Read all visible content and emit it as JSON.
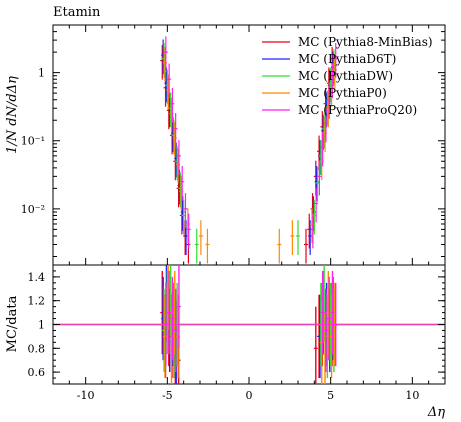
{
  "chart_data": [
    {
      "type": "line",
      "panel": "main",
      "title": "Etamin",
      "xlabel": "Δη",
      "ylabel": "1/N dN/dΔη",
      "xlim": [
        -12,
        12
      ],
      "ylim_log": [
        0.0015,
        5
      ],
      "y_log": true,
      "grid": false,
      "legend_position": "top-right",
      "x_ticks": [
        "-10",
        "-5",
        "0",
        "5",
        "10"
      ],
      "x_tick_values": [
        -10,
        -5,
        0,
        5,
        10
      ],
      "y_ticks": [
        "10⁻²",
        "10⁻¹",
        "1"
      ],
      "y_tick_values": [
        0.01,
        0.1,
        1
      ],
      "series": [
        {
          "name": "MC (Pythia8-MinBias)",
          "color": "#e8001a",
          "x": [
            -5.2,
            -5.0,
            -4.8,
            -4.6,
            -4.4,
            -4.2,
            -4.0,
            -3.8,
            -3.6,
            3.6,
            3.8,
            4.0,
            4.2,
            4.4,
            4.6,
            4.8,
            5.0,
            5.2
          ],
          "values": [
            1.5,
            0.6,
            0.28,
            0.12,
            0.05,
            0.02,
            0.008,
            0.004,
            0.003,
            0.003,
            0.005,
            0.01,
            0.03,
            0.07,
            0.16,
            0.35,
            0.7,
            1.4
          ]
        },
        {
          "name": "MC (PythiaD6T)",
          "color": "#2020ff",
          "x": [
            -5.2,
            -5.0,
            -4.8,
            -4.6,
            -4.4,
            -4.2,
            -4.0,
            -3.8,
            3.8,
            4.0,
            4.2,
            4.4,
            4.6,
            4.8,
            5.0,
            5.2
          ],
          "values": [
            1.8,
            0.7,
            0.3,
            0.13,
            0.055,
            0.022,
            0.009,
            0.004,
            0.004,
            0.009,
            0.025,
            0.06,
            0.14,
            0.3,
            0.65,
            1.2
          ]
        },
        {
          "name": "MC (PythiaDW)",
          "color": "#33dd33",
          "x": [
            -5.2,
            -5.0,
            -4.8,
            -4.6,
            -4.4,
            -4.2,
            -4.0,
            -3.2,
            3.0,
            4.0,
            4.2,
            4.4,
            4.6,
            4.8,
            5.0,
            5.2
          ],
          "values": [
            1.6,
            0.65,
            0.3,
            0.12,
            0.05,
            0.02,
            0.008,
            0.003,
            0.004,
            0.008,
            0.024,
            0.06,
            0.15,
            0.32,
            0.7,
            1.3
          ]
        },
        {
          "name": "MC (PythiaP0)",
          "color": "#ff8800",
          "x": [
            -5.2,
            -5.0,
            -4.8,
            -4.6,
            -4.4,
            -4.2,
            -3.8,
            -3.0,
            -2.6,
            1.8,
            2.6,
            3.8,
            4.4,
            4.6,
            4.8,
            5.0,
            5.2
          ],
          "values": [
            1.4,
            0.55,
            0.25,
            0.11,
            0.045,
            0.018,
            0.006,
            0.004,
            0.003,
            0.003,
            0.004,
            0.006,
            0.05,
            0.13,
            0.3,
            0.6,
            1.1
          ]
        },
        {
          "name": "MC (PythiaProQ20)",
          "color": "#ff22ee",
          "x": [
            -5.2,
            -5.0,
            -4.8,
            -4.6,
            -4.4,
            -4.2,
            -4.0,
            -3.8,
            3.8,
            4.0,
            4.2,
            4.4,
            4.6,
            4.8,
            5.0,
            5.2
          ],
          "values": [
            2.0,
            0.8,
            0.35,
            0.15,
            0.06,
            0.025,
            0.01,
            0.005,
            0.005,
            0.012,
            0.03,
            0.08,
            0.18,
            0.4,
            0.8,
            1.6
          ]
        }
      ]
    },
    {
      "type": "line",
      "panel": "ratio",
      "xlabel": "Δη",
      "ylabel": "MC/data",
      "xlim": [
        -12,
        12
      ],
      "ylim": [
        0.5,
        1.5
      ],
      "grid": false,
      "x_ticks": [
        "-10",
        "-5",
        "0",
        "5",
        "10"
      ],
      "x_tick_values": [
        -10,
        -5,
        0,
        5,
        10
      ],
      "y_ticks": [
        "0.6",
        "0.8",
        "1",
        "1.2",
        "1.4"
      ],
      "y_tick_values": [
        0.6,
        0.8,
        1.0,
        1.2,
        1.4
      ],
      "reference_line": 1.0,
      "series": [
        {
          "name": "MC (Pythia8-MinBias)",
          "color": "#e8001a",
          "x": [
            -5.2,
            -5.0,
            -4.8,
            -4.6,
            -4.4,
            -4.2,
            4.2,
            4.4,
            4.6,
            4.8,
            5.0,
            5.2
          ],
          "values": [
            1.1,
            0.9,
            1.0,
            0.9,
            0.8,
            0.7,
            0.8,
            0.9,
            1.0,
            0.95,
            1.05,
            1.0
          ]
        },
        {
          "name": "MC (PythiaD6T)",
          "color": "#2020ff",
          "x": [
            -5.2,
            -5.0,
            -4.8,
            -4.6,
            -4.4,
            4.4,
            4.6,
            4.8,
            5.0,
            5.2
          ],
          "values": [
            1.05,
            1.2,
            0.95,
            1.0,
            0.85,
            0.9,
            1.1,
            1.0,
            0.95,
            1.05
          ]
        },
        {
          "name": "MC (PythiaDW)",
          "color": "#33dd33",
          "x": [
            -5.2,
            -5.0,
            -4.8,
            -4.6,
            -4.4,
            4.4,
            4.6,
            4.8,
            5.0,
            5.2
          ],
          "values": [
            0.95,
            1.1,
            1.25,
            0.9,
            1.0,
            1.0,
            1.2,
            0.9,
            1.0,
            0.95
          ]
        },
        {
          "name": "MC (PythiaP0)",
          "color": "#ff8800",
          "x": [
            -5.2,
            -5.0,
            -4.8,
            -4.6,
            -4.4,
            4.4,
            4.6,
            4.8,
            5.0,
            5.2
          ],
          "values": [
            0.9,
            1.3,
            0.8,
            1.1,
            0.9,
            0.85,
            0.75,
            1.1,
            0.9,
            1.0
          ]
        },
        {
          "name": "MC (PythiaProQ20)",
          "color": "#ff22ee",
          "x": [
            -5.2,
            -5.0,
            -4.8,
            -4.6,
            -4.4,
            4.4,
            4.6,
            4.8,
            5.0,
            5.2
          ],
          "values": [
            1.0,
            1.1,
            1.05,
            0.95,
            1.15,
            1.1,
            0.95,
            1.05,
            1.1,
            1.0
          ]
        }
      ]
    }
  ]
}
